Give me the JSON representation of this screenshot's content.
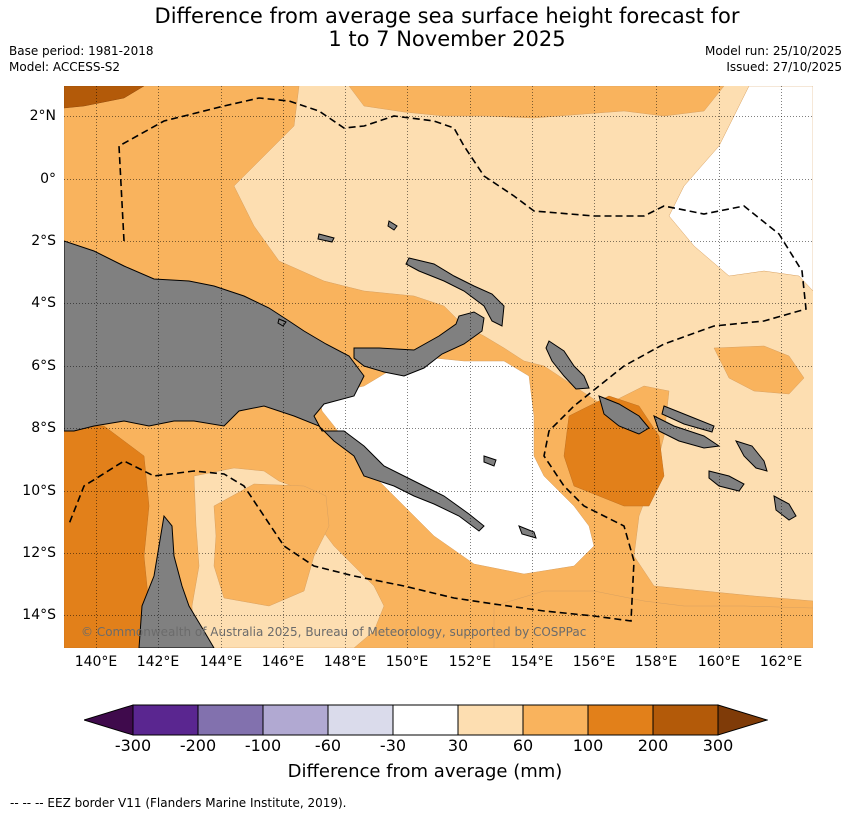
{
  "title": {
    "line1": "Difference from average sea surface height forecast for",
    "line2": "1 to 7 November 2025"
  },
  "meta": {
    "base_period": "Base period: 1981-2018",
    "model": "Model: ACCESS-S2",
    "model_run": "Model run: 25/10/2025",
    "issued": "Issued: 27/10/2025"
  },
  "map": {
    "lat_labels": [
      "2°N",
      "0°",
      "2°S",
      "4°S",
      "6°S",
      "8°S",
      "10°S",
      "12°S",
      "14°S"
    ],
    "lon_labels": [
      "140°E",
      "142°E",
      "144°E",
      "146°E",
      "148°E",
      "150°E",
      "152°E",
      "154°E",
      "156°E",
      "158°E",
      "160°E",
      "162°E"
    ],
    "copyright": "© Commonwealth of Australia 2025, Bureau of Meteorology, supported by COSPPac",
    "colors": {
      "land": "#808080",
      "c30_60": "#fddeb1",
      "c60_100": "#f9b35d",
      "c100_200": "#e2801a",
      "c200_300": "#b35a09"
    }
  },
  "colorbar": {
    "title": "Difference from average (mm)",
    "ticks": [
      "-300",
      "-200",
      "-100",
      "-60",
      "-30",
      "30",
      "60",
      "100",
      "200",
      "300"
    ],
    "colors": [
      "#3f0a4c",
      "#5a2690",
      "#8271ae",
      "#b1a9d2",
      "#dadbeb",
      "#ffffff",
      "#fddeb1",
      "#f9b35d",
      "#e2801a",
      "#b35a09",
      "#7f3b08"
    ]
  },
  "footer": "--  --  -- EEZ border V11 (Flanders Marine Institute, 2019)."
}
